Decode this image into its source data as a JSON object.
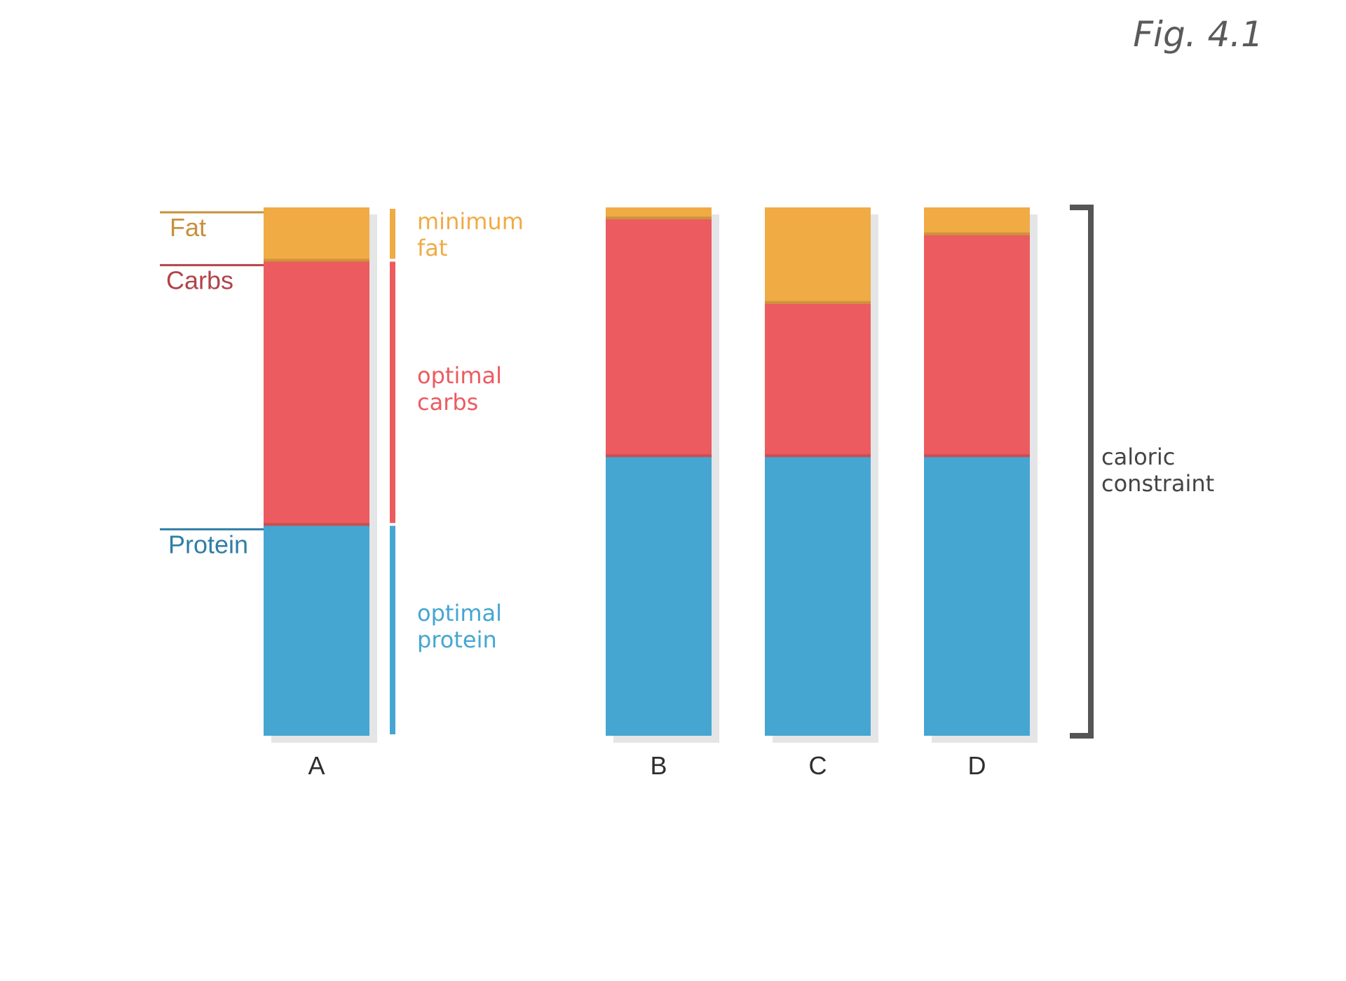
{
  "figure": {
    "title": "Fig. 4.1"
  },
  "chart_data": {
    "type": "bar",
    "stacked": true,
    "title": "Fig. 4.1",
    "xlabel": "",
    "ylabel": "",
    "ylim": [
      0,
      100
    ],
    "categories": [
      "A",
      "B",
      "C",
      "D"
    ],
    "series": [
      {
        "name": "Protein",
        "values": [
          40,
          53,
          53,
          53
        ]
      },
      {
        "name": "Carbs",
        "values": [
          50,
          45,
          29,
          42
        ]
      },
      {
        "name": "Fat",
        "values": [
          10,
          2,
          18,
          5
        ]
      }
    ],
    "colors": {
      "Protein": "#45a6d2",
      "Carbs": "#ec5b5f",
      "Fat": "#f0ab45"
    },
    "label_colors": {
      "Protein": "#2f7ea6",
      "Carbs": "#b0434a",
      "Fat": "#c8913a"
    },
    "series_labels": {
      "fat": "Fat",
      "carbs": "Carbs",
      "protein": "Protein"
    },
    "annotations": {
      "fat": [
        "minimum",
        "fat"
      ],
      "carbs": [
        "optimal",
        "carbs"
      ],
      "protein": [
        "optimal",
        "protein"
      ]
    },
    "bracket_label": [
      "caloric",
      "constraint"
    ],
    "bracket_color": "#555555"
  }
}
